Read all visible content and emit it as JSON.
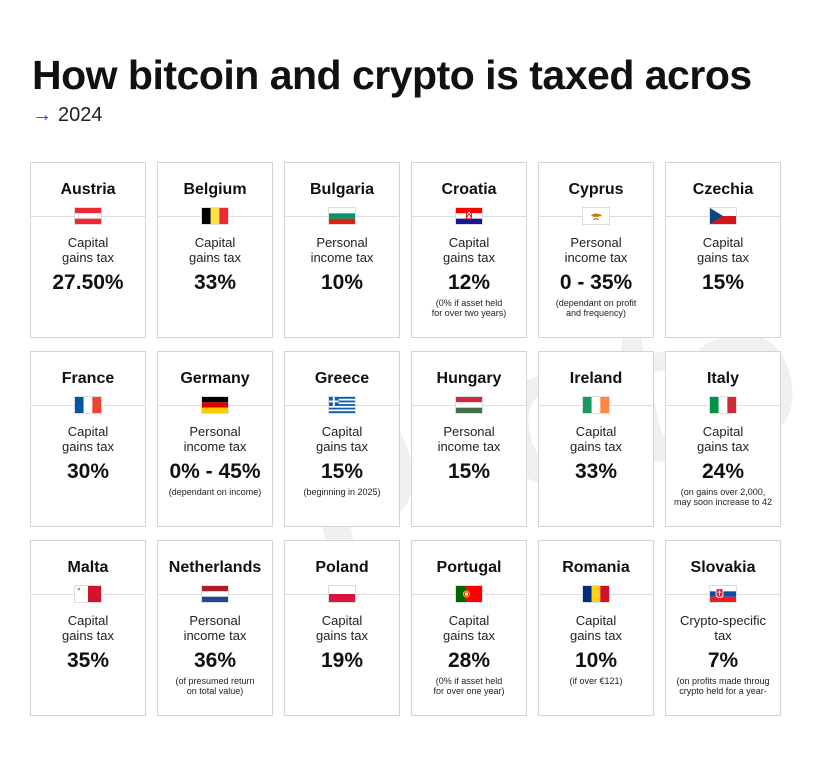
{
  "title": "How bitcoin and crypto is taxed acros",
  "subtitle": {
    "arrow": "→",
    "year": "2024"
  },
  "watermark": "proto",
  "countries": [
    {
      "name": "Austria",
      "tax": "Capital\ngains tax",
      "rate": "27.50%",
      "note": "",
      "flag": "austria"
    },
    {
      "name": "Belgium",
      "tax": "Capital\ngains tax",
      "rate": "33%",
      "note": "",
      "flag": "belgium"
    },
    {
      "name": "Bulgaria",
      "tax": "Personal\nincome tax",
      "rate": "10%",
      "note": "",
      "flag": "bulgaria"
    },
    {
      "name": "Croatia",
      "tax": "Capital\ngains tax",
      "rate": "12%",
      "note": "(0% if asset held\nfor over two years)",
      "flag": "croatia"
    },
    {
      "name": "Cyprus",
      "tax": "Personal\nincome tax",
      "rate": "0 - 35%",
      "note": "(dependant on profit\nand frequency)",
      "flag": "cyprus"
    },
    {
      "name": "Czechia",
      "tax": "Capital\ngains tax",
      "rate": "15%",
      "note": "",
      "flag": "czechia"
    },
    {
      "name": "France",
      "tax": "Capital\ngains tax",
      "rate": "30%",
      "note": "",
      "flag": "france"
    },
    {
      "name": "Germany",
      "tax": "Personal\nincome tax",
      "rate": "0% - 45%",
      "note": "(dependant on income)",
      "flag": "germany"
    },
    {
      "name": "Greece",
      "tax": "Capital\ngains tax",
      "rate": "15%",
      "note": "(beginning in 2025)",
      "flag": "greece"
    },
    {
      "name": "Hungary",
      "tax": "Personal\nincome tax",
      "rate": "15%",
      "note": "",
      "flag": "hungary"
    },
    {
      "name": "Ireland",
      "tax": "Capital\ngains tax",
      "rate": "33%",
      "note": "",
      "flag": "ireland"
    },
    {
      "name": "Italy",
      "tax": "Capital\ngains tax",
      "rate": "24%",
      "note": "(on gains over 2,000,\nmay soon increase to 42",
      "flag": "italy"
    },
    {
      "name": "Malta",
      "tax": "Capital\ngains tax",
      "rate": "35%",
      "note": "",
      "flag": "malta"
    },
    {
      "name": "Netherlands",
      "tax": "Personal\nincome tax",
      "rate": "36%",
      "note": "(of presumed return\non total value)",
      "flag": "netherlands"
    },
    {
      "name": "Poland",
      "tax": "Capital\ngains tax",
      "rate": "19%",
      "note": "",
      "flag": "poland"
    },
    {
      "name": "Portugal",
      "tax": "Capital\ngains tax",
      "rate": "28%",
      "note": "(0% if asset held\nfor over one year)",
      "flag": "portugal"
    },
    {
      "name": "Romania",
      "tax": "Capital\ngains tax",
      "rate": "10%",
      "note": "(if over €121)",
      "flag": "romania"
    },
    {
      "name": "Slovakia",
      "tax": "Crypto-specific\ntax",
      "rate": "7%",
      "note": "(on profits made throug\ncrypto held for a year-",
      "flag": "slovakia"
    }
  ],
  "colors": {
    "accent": "#1f4fd1",
    "border": "#d4d4d4"
  }
}
